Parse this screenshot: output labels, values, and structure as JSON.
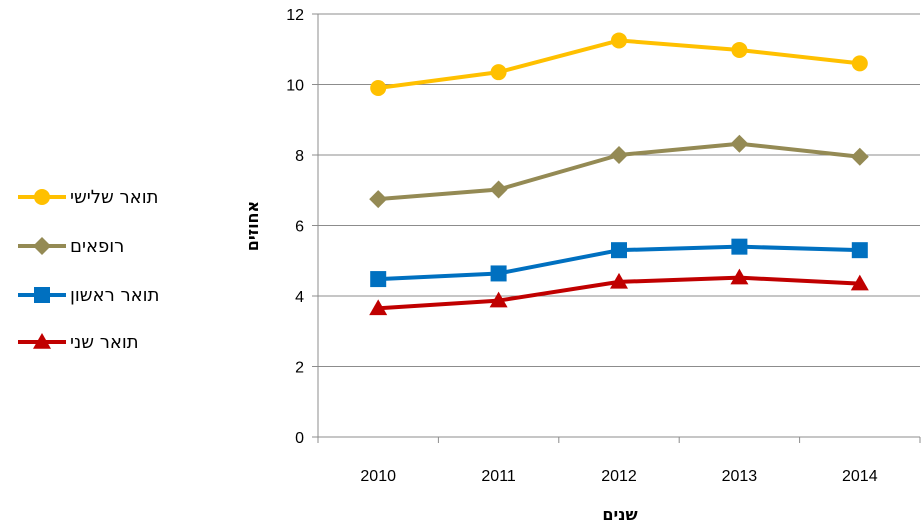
{
  "chart_data": {
    "type": "line",
    "title": "",
    "xlabel": "שנים",
    "ylabel": "אחוזים",
    "categories": [
      "2010",
      "2011",
      "2012",
      "2013",
      "2014"
    ],
    "ylim": [
      0,
      12
    ],
    "yticks": [
      0,
      2,
      4,
      6,
      8,
      10,
      12
    ],
    "grid": true,
    "legend_position": "left",
    "series": [
      {
        "name": "תואר שלישי",
        "color": "#FFC000",
        "marker": "circle",
        "values": [
          9.9,
          10.35,
          11.25,
          10.98,
          10.6
        ]
      },
      {
        "name": "רופאים",
        "color": "#948A54",
        "marker": "diamond",
        "values": [
          6.75,
          7.02,
          8.0,
          8.32,
          7.95
        ]
      },
      {
        "name": "תואר ראשון",
        "color": "#0070C0",
        "marker": "square",
        "values": [
          4.48,
          4.64,
          5.3,
          5.4,
          5.3
        ]
      },
      {
        "name": "תואר שני",
        "color": "#C00000",
        "marker": "triangle",
        "values": [
          3.65,
          3.87,
          4.4,
          4.52,
          4.35
        ]
      }
    ]
  }
}
